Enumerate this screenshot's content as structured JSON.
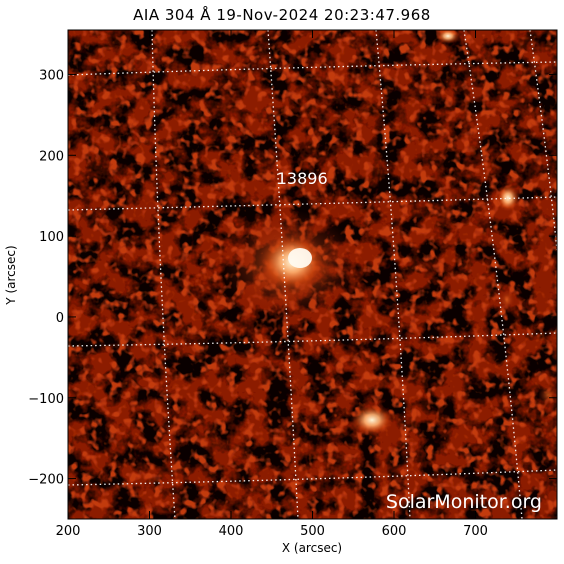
{
  "title": "AIA 304 Å 19-Nov-2024 20:23:47.968",
  "axes": {
    "x_label": "X (arcsec)",
    "y_label": "Y (arcsec)",
    "x_ticks": [
      "200",
      "300",
      "400",
      "500",
      "600",
      "700"
    ],
    "y_ticks": [
      "300",
      "200",
      "100",
      "0",
      "-100",
      "-200"
    ],
    "x_range": [
      200,
      800
    ],
    "y_range": [
      -250,
      355
    ]
  },
  "region": {
    "label": "13896",
    "x": 480,
    "y": 140
  },
  "watermark": "SolarMonitor.org",
  "colors": {
    "background": "#ffffff",
    "image_dark": "#0a0000",
    "image_mid": "#8c1a05",
    "image_bright": "#ffe0a0",
    "grid": "#ffffff"
  }
}
